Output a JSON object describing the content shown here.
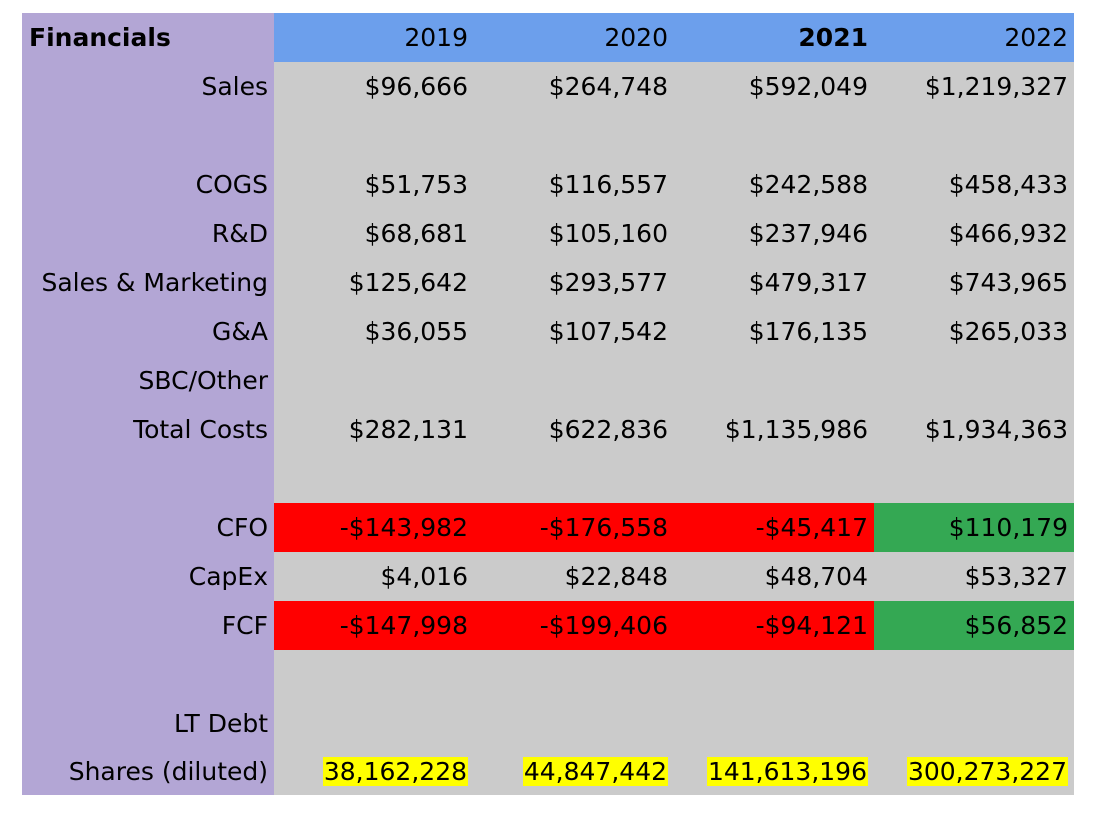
{
  "header": {
    "title": "Financials",
    "years": [
      "2019",
      "2020",
      "2021",
      "2022"
    ]
  },
  "rows": {
    "sales": {
      "label": "Sales",
      "values": [
        "$96,666",
        "$264,748",
        "$592,049",
        "$1,219,327"
      ]
    },
    "cogs": {
      "label": "COGS",
      "values": [
        "$51,753",
        "$116,557",
        "$242,588",
        "$458,433"
      ]
    },
    "rd": {
      "label": "R&D",
      "values": [
        "$68,681",
        "$105,160",
        "$237,946",
        "$466,932"
      ]
    },
    "sm": {
      "label": "Sales & Marketing",
      "values": [
        "$125,642",
        "$293,577",
        "$479,317",
        "$743,965"
      ]
    },
    "ga": {
      "label": "G&A",
      "values": [
        "$36,055",
        "$107,542",
        "$176,135",
        "$265,033"
      ]
    },
    "sbc": {
      "label": "SBC/Other",
      "values": [
        "",
        "",
        "",
        ""
      ]
    },
    "total_costs": {
      "label": "Total Costs",
      "values": [
        "$282,131",
        "$622,836",
        "$1,135,986",
        "$1,934,363"
      ]
    },
    "cfo": {
      "label": "CFO",
      "values": [
        "-$143,982",
        "-$176,558",
        "-$45,417",
        "$110,179"
      ]
    },
    "capex": {
      "label": "CapEx",
      "values": [
        "$4,016",
        "$22,848",
        "$48,704",
        "$53,327"
      ]
    },
    "fcf": {
      "label": "FCF",
      "values": [
        "-$147,998",
        "-$199,406",
        "-$94,121",
        "$56,852"
      ]
    },
    "lt_debt": {
      "label": "LT Debt",
      "values": [
        "",
        "",
        "",
        ""
      ]
    },
    "shares": {
      "label": "Shares (diluted)",
      "values": [
        "38,162,228",
        "44,847,442",
        "141,613,196",
        "300,273,227"
      ]
    }
  },
  "colors": {
    "label_column": "#b3a6d5",
    "header_row": "#6c9fec",
    "body": "#cbcbcb",
    "negative": "#ff0000",
    "positive": "#34a853",
    "highlight": "#ffff00"
  }
}
